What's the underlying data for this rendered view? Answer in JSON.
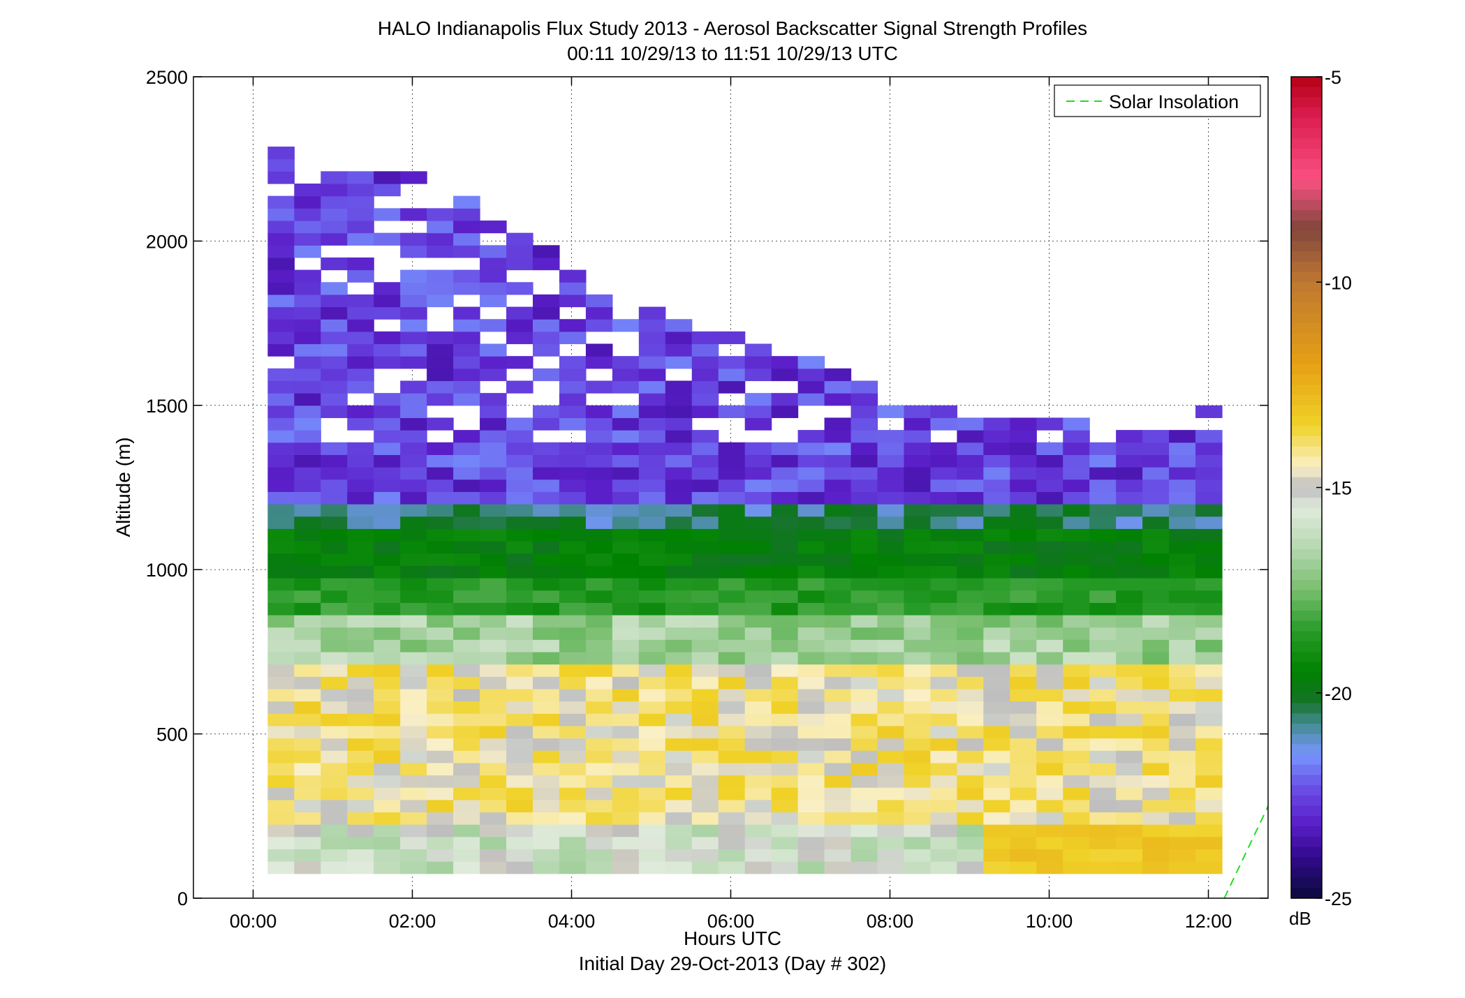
{
  "chart_data": {
    "type": "heatmap",
    "title": "HALO Indianapolis Flux Study 2013 - Aerosol Backscatter Signal Strength Profiles",
    "subtitle": "00:11 10/29/13 to 11:51 10/29/13  UTC",
    "xlabel": "Hours UTC",
    "xlabel2": "Initial Day 29-Oct-2013 (Day # 302)",
    "ylabel": "Altitude (m)",
    "xlim": [
      -0.75,
      12.75
    ],
    "ylim": [
      0,
      2500
    ],
    "x_ticks": [
      0,
      2,
      4,
      6,
      8,
      10,
      12
    ],
    "x_tick_labels": [
      "00:00",
      "02:00",
      "04:00",
      "06:00",
      "08:00",
      "10:00",
      "12:00"
    ],
    "y_ticks": [
      0,
      500,
      1000,
      1500,
      2000,
      2500
    ],
    "y_tick_labels": [
      "0",
      "500",
      "1000",
      "1500",
      "2000",
      "2500"
    ],
    "grid": true,
    "legend_position": "top-right",
    "legend": [
      {
        "name": "Solar Insolation",
        "color": "#22dd22",
        "style": "dashed"
      }
    ],
    "solar_insolation_line": {
      "x": [
        12.2,
        12.75
      ],
      "y": [
        0,
        280
      ]
    },
    "colorbar": {
      "label": "dB",
      "min": -25,
      "max": -5,
      "tick_values": [
        -5,
        -10,
        -15,
        -20,
        -25
      ],
      "tick_labels": [
        "-5",
        "-10",
        "-15",
        "-20",
        "-25"
      ]
    },
    "cell": {
      "x_start_hours": 0.183,
      "x_step_hours": 0.333,
      "y_start_m": 75,
      "y_step_m": 37.5
    },
    "profile_top_altitude_m": [
      2285,
      2210,
      2210,
      2180,
      2180,
      2180,
      2105,
      2105,
      2030,
      1990,
      1955,
      1880,
      1835,
      1800,
      1765,
      1760,
      1730,
      1720,
      1660,
      1640,
      1620,
      1590,
      1540,
      1480,
      1480,
      1465,
      1460,
      1455,
      1450,
      1435,
      1435,
      1415,
      1415,
      1415,
      1415,
      1490
    ],
    "layers": [
      {
        "altitude_m": [
          2300,
          1180
        ],
        "mean_dB": -22.0,
        "description": "blue/purple residual aerosol layers"
      },
      {
        "altitude_m": [
          1200,
          950
        ],
        "mean_dB": -19.5,
        "description": "green boundary layer top"
      },
      {
        "altitude_m": [
          950,
          700
        ],
        "mean_dB": -17.5,
        "description": "light green transition"
      },
      {
        "altitude_m": [
          700,
          75
        ],
        "mean_dB": -14.0,
        "description": "yellow/cream near-surface aerosol"
      }
    ]
  }
}
